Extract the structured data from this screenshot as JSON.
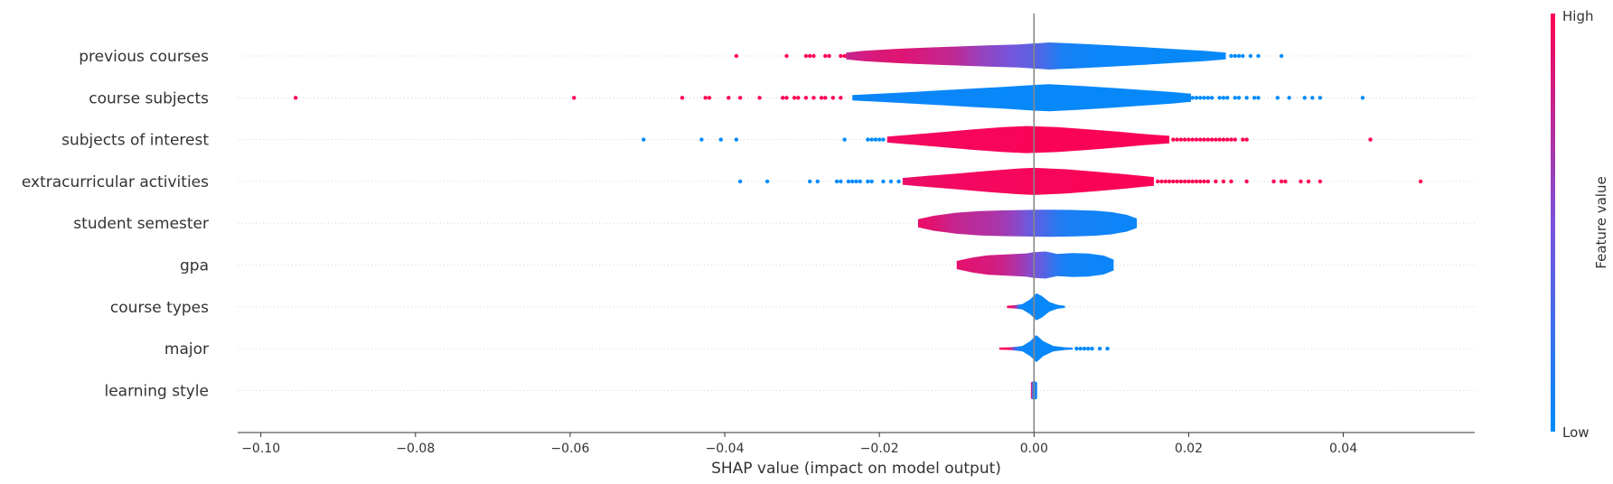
{
  "chart_data": {
    "type": "violin",
    "xlabel": "SHAP value (impact on model output)",
    "xlim": [
      -0.103,
      0.057
    ],
    "xticks": [
      -0.1,
      -0.08,
      -0.06,
      -0.04,
      -0.02,
      0.0,
      0.02,
      0.04
    ],
    "xtick_labels": [
      "−0.10",
      "−0.08",
      "−0.06",
      "−0.04",
      "−0.02",
      "0.00",
      "0.02",
      "0.04"
    ],
    "zero_line": 0.0,
    "features": [
      {
        "name": "previous courses",
        "color_gradient": [
          0.78,
          0.85,
          0.88,
          0.82,
          0.75,
          0.6,
          0.48,
          0.35,
          0.1,
          0.05,
          0.04,
          0.04,
          0.03,
          0.03,
          0.02
        ],
        "violin": [
          [
            -0.0243,
            0.25
          ],
          [
            -0.022,
            0.38
          ],
          [
            -0.018,
            0.52
          ],
          [
            -0.014,
            0.62
          ],
          [
            -0.01,
            0.7
          ],
          [
            -0.006,
            0.78
          ],
          [
            -0.002,
            0.85
          ],
          [
            0.002,
            1.0
          ],
          [
            0.006,
            0.9
          ],
          [
            0.01,
            0.78
          ],
          [
            0.014,
            0.66
          ],
          [
            0.018,
            0.52
          ],
          [
            0.022,
            0.38
          ],
          [
            0.0248,
            0.25
          ]
        ],
        "outliers_high": [
          -0.0385,
          -0.032,
          -0.0295,
          -0.029,
          -0.0285,
          -0.027,
          -0.0265,
          -0.025,
          -0.0245
        ],
        "outliers_low": [
          0.0255,
          0.026,
          0.0265,
          0.027,
          0.028,
          0.029,
          0.032
        ]
      },
      {
        "name": "course subjects",
        "color_gradient": [
          0.04,
          0.05,
          0.05,
          0.04,
          0.04,
          0.04,
          0.03,
          0.03,
          0.03,
          0.03,
          0.03,
          0.03,
          0.03,
          0.02,
          0.02
        ],
        "violin": [
          [
            -0.0235,
            0.2
          ],
          [
            -0.02,
            0.3
          ],
          [
            -0.016,
            0.42
          ],
          [
            -0.012,
            0.55
          ],
          [
            -0.008,
            0.68
          ],
          [
            -0.004,
            0.8
          ],
          [
            0.0,
            0.95
          ],
          [
            0.002,
            1.0
          ],
          [
            0.006,
            0.88
          ],
          [
            0.01,
            0.74
          ],
          [
            0.014,
            0.58
          ],
          [
            0.018,
            0.42
          ],
          [
            0.0203,
            0.3
          ]
        ],
        "outliers_high": [
          -0.0955,
          -0.0595,
          -0.0455,
          -0.0425,
          -0.042,
          -0.0395,
          -0.038,
          -0.0355,
          -0.0325,
          -0.032,
          -0.031,
          -0.0305,
          -0.0295,
          -0.0285,
          -0.0275,
          -0.027,
          -0.026,
          -0.025
        ],
        "outliers_low": [
          0.0205,
          0.021,
          0.0215,
          0.022,
          0.0225,
          0.023,
          0.024,
          0.0245,
          0.025,
          0.026,
          0.0265,
          0.0275,
          0.0285,
          0.029,
          0.0315,
          0.033,
          0.035,
          0.036,
          0.037,
          0.0425
        ]
      },
      {
        "name": "subjects of interest",
        "color_gradient": [
          0.95,
          0.95,
          0.96,
          0.96,
          0.97,
          0.97,
          0.97,
          0.98,
          0.98,
          0.98,
          0.98,
          0.98,
          0.98,
          0.98,
          0.98
        ],
        "violin": [
          [
            -0.019,
            0.22
          ],
          [
            -0.016,
            0.36
          ],
          [
            -0.012,
            0.55
          ],
          [
            -0.008,
            0.75
          ],
          [
            -0.004,
            0.92
          ],
          [
            -0.001,
            1.0
          ],
          [
            0.003,
            0.92
          ],
          [
            0.007,
            0.76
          ],
          [
            0.011,
            0.58
          ],
          [
            0.014,
            0.42
          ],
          [
            0.0175,
            0.28
          ]
        ],
        "outliers_high": [
          0.018,
          0.0185,
          0.019,
          0.0195,
          0.02,
          0.0205,
          0.021,
          0.0215,
          0.022,
          0.0225,
          0.023,
          0.0235,
          0.024,
          0.0245,
          0.025,
          0.0255,
          0.026,
          0.027,
          0.0275,
          0.0435
        ],
        "outliers_low": [
          -0.0505,
          -0.043,
          -0.0405,
          -0.0385,
          -0.0245,
          -0.0215,
          -0.021,
          -0.0205,
          -0.02,
          -0.0195
        ]
      },
      {
        "name": "extracurricular activities",
        "color_gradient": [
          0.92,
          0.93,
          0.94,
          0.95,
          0.95,
          0.96,
          0.96,
          0.97,
          0.97,
          0.97,
          0.98,
          0.98,
          0.98,
          0.98,
          0.98
        ],
        "violin": [
          [
            -0.017,
            0.25
          ],
          [
            -0.014,
            0.4
          ],
          [
            -0.01,
            0.58
          ],
          [
            -0.006,
            0.78
          ],
          [
            -0.002,
            0.95
          ],
          [
            0.0,
            1.0
          ],
          [
            0.004,
            0.9
          ],
          [
            0.008,
            0.72
          ],
          [
            0.012,
            0.52
          ],
          [
            0.0155,
            0.32
          ]
        ],
        "outliers_high": [
          0.016,
          0.0165,
          0.017,
          0.0175,
          0.018,
          0.0185,
          0.019,
          0.0195,
          0.02,
          0.0205,
          0.021,
          0.0215,
          0.022,
          0.0225,
          0.0235,
          0.0245,
          0.0255,
          0.0275,
          0.031,
          0.032,
          0.0325,
          0.0345,
          0.0355,
          0.037,
          0.05
        ],
        "outliers_low": [
          -0.038,
          -0.0345,
          -0.029,
          -0.028,
          -0.0255,
          -0.025,
          -0.024,
          -0.0235,
          -0.023,
          -0.0225,
          -0.0215,
          -0.021,
          -0.0195,
          -0.0185,
          -0.0175
        ]
      },
      {
        "name": "student semester",
        "color_gradient": [
          0.92,
          0.88,
          0.8,
          0.75,
          0.72,
          0.68,
          0.6,
          0.45,
          0.3,
          0.15,
          0.1,
          0.08,
          0.06,
          0.05,
          0.05
        ],
        "violin": [
          [
            -0.015,
            0.3
          ],
          [
            -0.013,
            0.55
          ],
          [
            -0.01,
            0.78
          ],
          [
            -0.007,
            0.9
          ],
          [
            -0.004,
            0.95
          ],
          [
            -0.001,
            0.98
          ],
          [
            0.002,
            1.0
          ],
          [
            0.005,
            0.98
          ],
          [
            0.008,
            0.92
          ],
          [
            0.01,
            0.82
          ],
          [
            0.012,
            0.62
          ],
          [
            0.0133,
            0.35
          ]
        ],
        "outliers_high": [],
        "outliers_low": []
      },
      {
        "name": "gpa",
        "color_gradient": [
          0.9,
          0.88,
          0.86,
          0.84,
          0.8,
          0.72,
          0.62,
          0.48,
          0.32,
          0.15,
          0.08,
          0.06,
          0.05,
          0.05,
          0.05
        ],
        "violin": [
          [
            -0.01,
            0.3
          ],
          [
            -0.008,
            0.55
          ],
          [
            -0.006,
            0.72
          ],
          [
            -0.003,
            0.8
          ],
          [
            -0.001,
            0.86
          ],
          [
            0.0,
            0.95
          ],
          [
            0.0015,
            1.0
          ],
          [
            0.003,
            0.82
          ],
          [
            0.005,
            0.88
          ],
          [
            0.007,
            0.85
          ],
          [
            0.009,
            0.7
          ],
          [
            0.0103,
            0.4
          ]
        ],
        "outliers_high": [],
        "outliers_low": []
      },
      {
        "name": "course types",
        "color_gradient": [
          0.95,
          0.95,
          0.7,
          0.1,
          0.05,
          0.04,
          0.04,
          0.04,
          0.03,
          0.03,
          0.03,
          0.03,
          0.03,
          0.03,
          0.03
        ],
        "violin": [
          [
            -0.0035,
            0.08
          ],
          [
            -0.0025,
            0.12
          ],
          [
            -0.0015,
            0.2
          ],
          [
            -0.0005,
            0.55
          ],
          [
            0.0003,
            1.0
          ],
          [
            0.001,
            0.8
          ],
          [
            0.002,
            0.35
          ],
          [
            0.003,
            0.15
          ],
          [
            0.004,
            0.07
          ]
        ],
        "outliers_high": [],
        "outliers_low": []
      },
      {
        "name": "major",
        "color_gradient": [
          0.96,
          0.96,
          0.95,
          0.3,
          0.05,
          0.04,
          0.04,
          0.04,
          0.03,
          0.03,
          0.03,
          0.03,
          0.03,
          0.03,
          0.03
        ],
        "violin": [
          [
            -0.0045,
            0.08
          ],
          [
            -0.003,
            0.1
          ],
          [
            -0.0015,
            0.2
          ],
          [
            -0.0005,
            0.55
          ],
          [
            0.0003,
            1.0
          ],
          [
            0.0012,
            0.55
          ],
          [
            0.0025,
            0.2
          ],
          [
            0.004,
            0.1
          ],
          [
            0.005,
            0.07
          ]
        ],
        "outliers_high": [],
        "outliers_low": [
          0.0055,
          0.006,
          0.0065,
          0.007,
          0.0075,
          0.0085,
          0.0095
        ]
      },
      {
        "name": "learning style",
        "color_gradient": [
          0.95,
          0.9,
          0.6,
          0.3,
          0.2,
          0.15,
          0.1,
          0.08,
          0.06,
          0.05,
          0.05,
          0.05,
          0.05,
          0.05,
          0.05
        ],
        "violin": [
          [
            -0.0004,
            0.6
          ],
          [
            0.0,
            0.7
          ],
          [
            0.0004,
            0.6
          ]
        ],
        "outliers_high": [],
        "outliers_low": []
      }
    ],
    "colorbar": {
      "label": "Feature value",
      "high_label": "High",
      "low_label": "Low",
      "low_color": "#008bfb",
      "mid_color": "#7c52d9",
      "high_color": "#ff0052"
    }
  }
}
